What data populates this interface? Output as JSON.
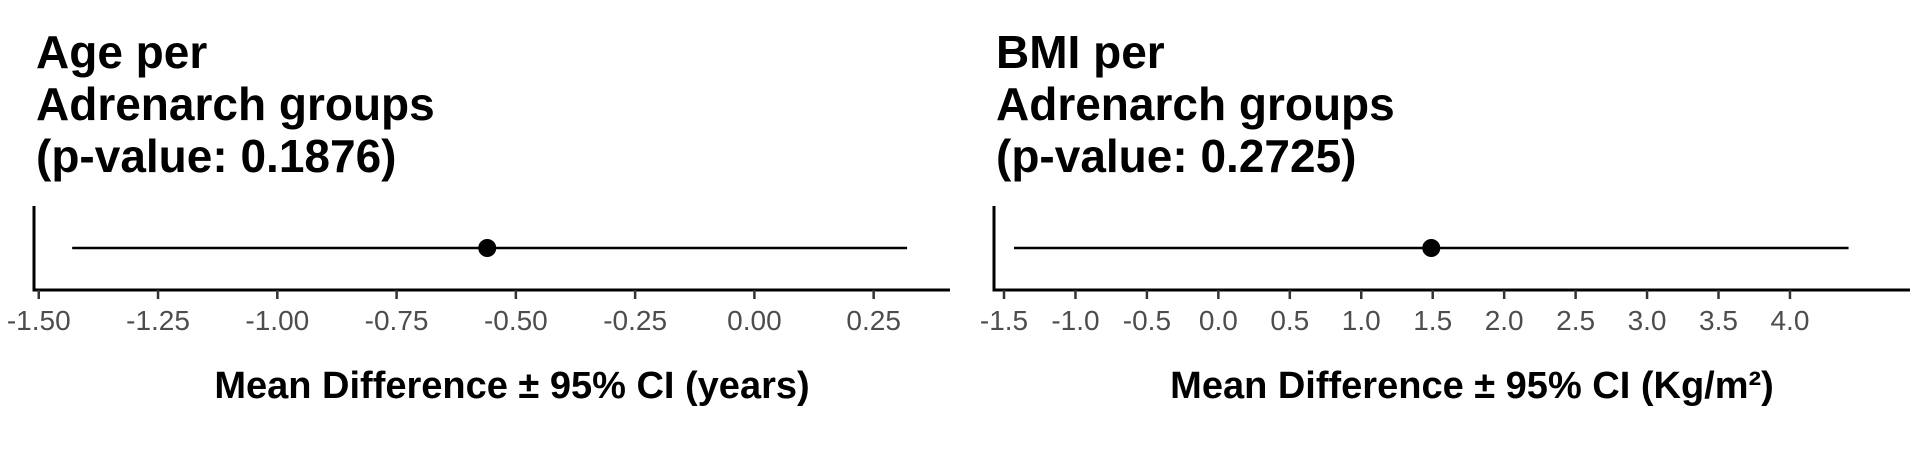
{
  "chart_data": [
    {
      "type": "forest",
      "title_lines": [
        "Age per",
        "Adrenarch groups",
        "(p-value: 0.1876)"
      ],
      "xlabel": "Mean Difference ± 95% CI (years)",
      "xlim": [
        -1.51,
        0.41
      ],
      "ticks": [
        -1.5,
        -1.25,
        -1.0,
        -0.75,
        -0.5,
        -0.25,
        0.0,
        0.25
      ],
      "tick_labels": [
        "-1.50",
        "-1.25",
        "-1.00",
        "-0.75",
        "-0.50",
        "-0.25",
        "0.00",
        "0.25"
      ],
      "estimate": -0.56,
      "ci_low": -1.43,
      "ci_high": 0.32
    },
    {
      "type": "forest",
      "title_lines": [
        "BMI per",
        "Adrenarch groups",
        "(p-value: 0.2725)"
      ],
      "xlabel": "Mean Difference ± 95% CI (Kg/m²)",
      "xlim": [
        -1.57,
        4.84
      ],
      "ticks": [
        -1.5,
        -1.0,
        -0.5,
        0.0,
        0.5,
        1.0,
        1.5,
        2.0,
        2.5,
        3.0,
        3.5,
        4.0
      ],
      "tick_labels": [
        "-1.5",
        "-1.0",
        "-0.5",
        "0.0",
        "0.5",
        "1.0",
        "1.5",
        "2.0",
        "2.5",
        "3.0",
        "3.5",
        "4.0"
      ],
      "estimate": 1.49,
      "ci_low": -1.43,
      "ci_high": 4.41
    }
  ]
}
